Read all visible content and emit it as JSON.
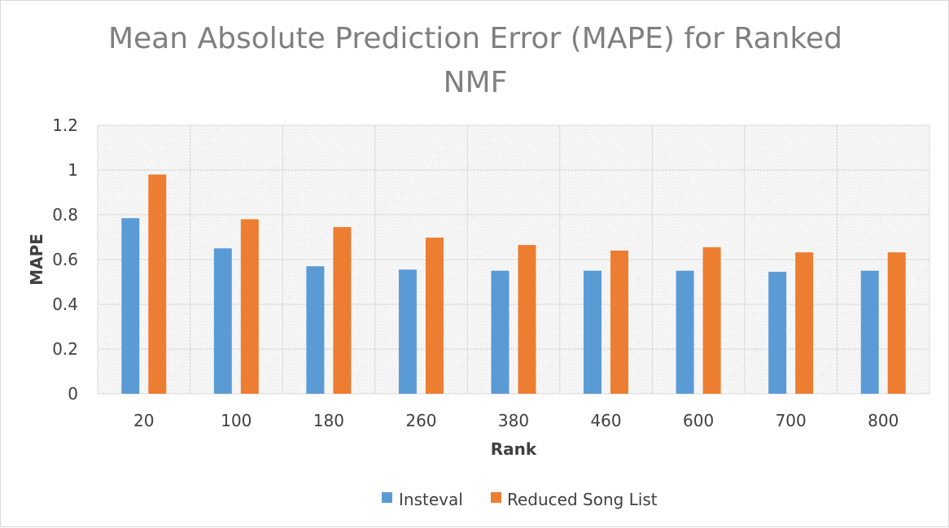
{
  "chart_data": {
    "type": "bar",
    "title": "Mean Absolute Prediction Error (MAPE) for Ranked NMF",
    "title_lines": [
      "Mean Absolute Prediction Error (MAPE) for Ranked",
      "NMF"
    ],
    "xlabel": "Rank",
    "ylabel": "MAPE",
    "categories": [
      "20",
      "100",
      "180",
      "260",
      "380",
      "460",
      "600",
      "700",
      "800"
    ],
    "series": [
      {
        "name": "Insteval",
        "color": "#5b9bd5",
        "values": [
          0.785,
          0.65,
          0.57,
          0.555,
          0.55,
          0.55,
          0.55,
          0.545,
          0.55
        ]
      },
      {
        "name": "Reduced Song List",
        "color": "#ed7d31",
        "values": [
          0.98,
          0.78,
          0.745,
          0.698,
          0.665,
          0.64,
          0.655,
          0.632,
          0.632
        ]
      }
    ],
    "ylim": [
      0,
      1.2
    ],
    "yticks": [
      "0",
      "0.2",
      "0.4",
      "0.6",
      "0.8",
      "1",
      "1.2"
    ],
    "grid": true,
    "legend_position": "bottom"
  }
}
